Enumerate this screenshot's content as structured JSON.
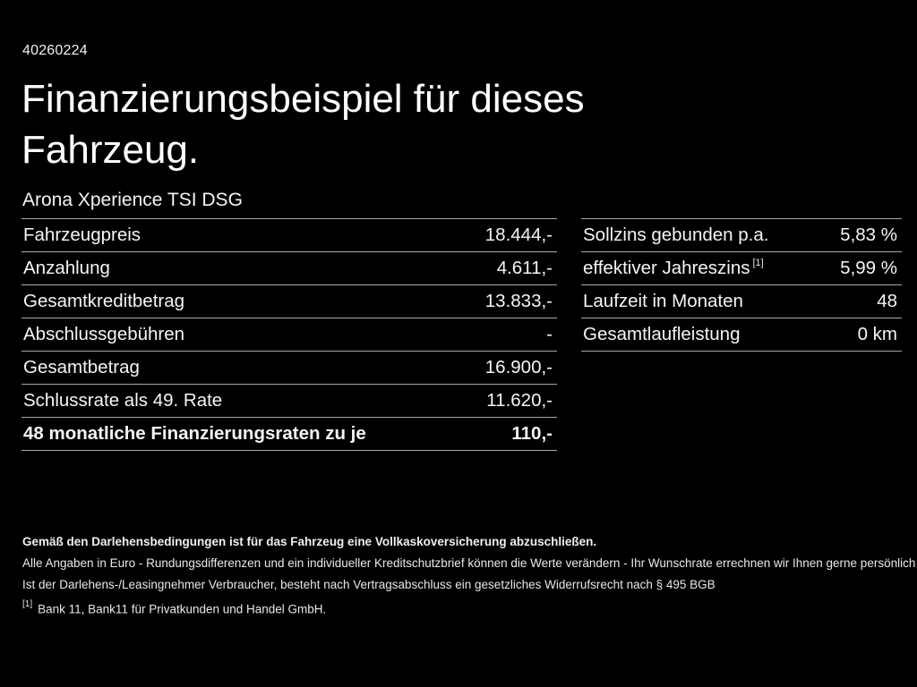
{
  "page": {
    "background_color": "#000000",
    "text_color": "#ffffff",
    "divider_color": "#a9a9a9"
  },
  "header": {
    "document_id": "40260224",
    "title_line1": "Finanzierungsbeispiel für dieses",
    "title_line2": "Fahrzeug.",
    "vehicle_model": "Arona Xperience TSI DSG"
  },
  "finance_table": {
    "rows": [
      {
        "label": "Fahrzeugpreis",
        "value": "18.444,-"
      },
      {
        "label": "Anzahlung",
        "value": "4.611,-"
      },
      {
        "label": "Gesamtkreditbetrag",
        "value": "13.833,-"
      },
      {
        "label": "Abschlussgebühren",
        "value": "-"
      },
      {
        "label": "Gesamtbetrag",
        "value": "16.900,-"
      },
      {
        "label": "Schlussrate als 49. Rate",
        "value": "11.620,-"
      },
      {
        "label": "48 monatliche Finanzierungsraten zu je",
        "value": "110,-"
      }
    ]
  },
  "conditions_table": {
    "rows": [
      {
        "label": "Sollzins gebunden p.a.",
        "value": "5,83 %"
      },
      {
        "label": "effektiver Jahreszins",
        "label_superscript": "[1]",
        "value": "5,99 %"
      },
      {
        "label": "Laufzeit in Monaten",
        "value": "48"
      },
      {
        "label": "Gesamtlaufleistung",
        "value": "0 km"
      }
    ]
  },
  "footer": {
    "insurance_note": "Gemäß den Darlehensbedingungen ist für das Fahrzeug eine Vollkaskoversicherung abzuschließen.",
    "disclaimer_line1": "Alle Angaben in Euro - Rundungsdifferenzen und ein individueller Kreditschutzbrief können die Werte verändern - Ihr Wunschrate errechnen wir Ihnen gerne persönlich",
    "disclaimer_line2": "Ist der Darlehens-/Leasingnehmer Verbraucher, besteht nach Vertragsabschluss ein gesetzliches Widerrufsrecht nach § 495 BGB",
    "footnote_marker": "[1]",
    "footnote_text": "Bank 11, Bank11 für Privatkunden und Handel GmbH."
  }
}
